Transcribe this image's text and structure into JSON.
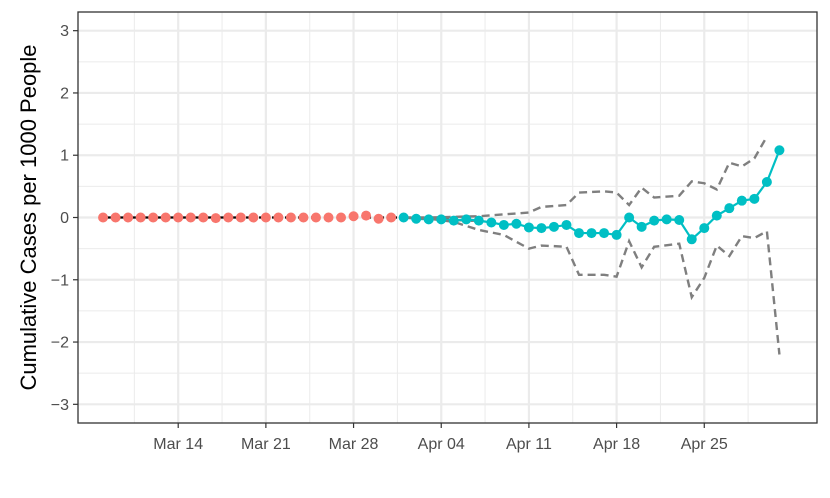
{
  "chart_data": {
    "type": "line",
    "title": "",
    "xlabel": "",
    "ylabel": "Cumulative Cases per 1000 People",
    "ylim": [
      -3.3,
      3.3
    ],
    "xlim": [
      "2020-03-06",
      "2020-05-04"
    ],
    "yticks": [
      -3,
      -2,
      -1,
      0,
      1,
      2,
      3
    ],
    "ytick_labels": [
      "−3",
      "−2",
      "−1",
      "0",
      "1",
      "2",
      "3"
    ],
    "xticks": [
      "2020-03-14",
      "2020-03-21",
      "2020-03-28",
      "2020-04-04",
      "2020-04-11",
      "2020-04-18",
      "2020-04-25"
    ],
    "xtick_labels": [
      "Mar 14",
      "Mar 21",
      "Mar 28",
      "Apr 04",
      "Apr 11",
      "Apr 18",
      "Apr 25"
    ],
    "grid": true,
    "legend": "none",
    "colors": {
      "pre_period": "#f8766d",
      "post_period": "#00bfc4",
      "counterfactual": "#000000",
      "interval": "#7f7f7f",
      "grid": "#ebebeb",
      "panel_border": "#333333"
    },
    "series": [
      {
        "style": "points-red",
        "x": [
          "2020-03-08",
          "2020-03-09",
          "2020-03-10",
          "2020-03-11",
          "2020-03-12",
          "2020-03-13",
          "2020-03-14",
          "2020-03-15",
          "2020-03-16",
          "2020-03-17",
          "2020-03-18",
          "2020-03-19",
          "2020-03-20",
          "2020-03-21",
          "2020-03-22",
          "2020-03-23",
          "2020-03-24",
          "2020-03-25",
          "2020-03-26",
          "2020-03-27",
          "2020-03-28",
          "2020-03-29",
          "2020-03-30",
          "2020-03-31"
        ],
        "y": [
          0,
          0,
          0,
          0,
          0,
          0,
          0,
          0,
          0,
          -0.01,
          0,
          0,
          0,
          0,
          0,
          0,
          0,
          0,
          0,
          0,
          0.02,
          0.03,
          -0.02,
          0
        ]
      },
      {
        "style": "line-black",
        "x": [
          "2020-03-08",
          "2020-03-10",
          "2020-03-12",
          "2020-03-14",
          "2020-03-16",
          "2020-03-18",
          "2020-03-20",
          "2020-03-22",
          "2020-03-24",
          "2020-03-26",
          "2020-03-28",
          "2020-03-30",
          "2020-04-01",
          "2020-04-03",
          "2020-04-05",
          "2020-04-07"
        ],
        "y": [
          0,
          0,
          0,
          0,
          0,
          0,
          0,
          0,
          0,
          0,
          0,
          0,
          0,
          -0.02,
          -0.04,
          -0.05
        ]
      },
      {
        "style": "line-teal",
        "x": [
          "2020-04-01",
          "2020-04-02",
          "2020-04-03",
          "2020-04-04",
          "2020-04-05",
          "2020-04-06",
          "2020-04-07",
          "2020-04-08",
          "2020-04-09",
          "2020-04-10",
          "2020-04-11",
          "2020-04-12",
          "2020-04-13",
          "2020-04-14",
          "2020-04-15",
          "2020-04-16",
          "2020-04-17",
          "2020-04-18",
          "2020-04-19",
          "2020-04-20",
          "2020-04-21",
          "2020-04-22",
          "2020-04-23",
          "2020-04-24",
          "2020-04-25",
          "2020-04-26",
          "2020-04-27",
          "2020-04-28",
          "2020-04-29",
          "2020-04-30",
          "2020-05-01"
        ],
        "y": [
          0,
          -0.02,
          -0.03,
          -0.03,
          -0.05,
          -0.03,
          -0.05,
          -0.08,
          -0.12,
          -0.1,
          -0.16,
          -0.17,
          -0.15,
          -0.12,
          -0.25,
          -0.25,
          -0.25,
          -0.28,
          0,
          -0.15,
          -0.05,
          -0.03,
          -0.04,
          -0.35,
          -0.17,
          0.03,
          0.15,
          0.27,
          0.3,
          0.57,
          1.08
        ]
      },
      {
        "style": "dashed-gray",
        "x": [
          "2020-04-01",
          "2020-04-03",
          "2020-04-05",
          "2020-04-07",
          "2020-04-09",
          "2020-04-11",
          "2020-04-12",
          "2020-04-14",
          "2020-04-15",
          "2020-04-17",
          "2020-04-18",
          "2020-04-19",
          "2020-04-20",
          "2020-04-21",
          "2020-04-23",
          "2020-04-24",
          "2020-04-25",
          "2020-04-26",
          "2020-04-27",
          "2020-04-28",
          "2020-04-29",
          "2020-04-30"
        ],
        "y": [
          0,
          0,
          0.01,
          0.02,
          0.05,
          0.08,
          0.17,
          0.2,
          0.4,
          0.42,
          0.4,
          0.2,
          0.48,
          0.32,
          0.35,
          0.58,
          0.55,
          0.45,
          0.88,
          0.82,
          0.95,
          1.3
        ]
      },
      {
        "style": "dashed-gray",
        "x": [
          "2020-04-01",
          "2020-04-03",
          "2020-04-05",
          "2020-04-07",
          "2020-04-09",
          "2020-04-11",
          "2020-04-12",
          "2020-04-14",
          "2020-04-15",
          "2020-04-17",
          "2020-04-18",
          "2020-04-19",
          "2020-04-20",
          "2020-04-21",
          "2020-04-23",
          "2020-04-24",
          "2020-04-25",
          "2020-04-26",
          "2020-04-27",
          "2020-04-28",
          "2020-04-29",
          "2020-04-30",
          "2020-05-01"
        ],
        "y": [
          0,
          -0.02,
          -0.07,
          -0.2,
          -0.28,
          -0.5,
          -0.45,
          -0.47,
          -0.92,
          -0.92,
          -0.95,
          -0.38,
          -0.8,
          -0.47,
          -0.42,
          -1.28,
          -0.97,
          -0.45,
          -0.62,
          -0.3,
          -0.33,
          -0.22,
          -2.2
        ]
      }
    ]
  }
}
